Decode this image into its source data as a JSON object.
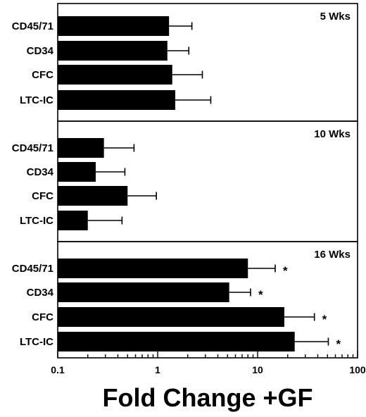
{
  "chart_data": {
    "type": "bar",
    "orientation": "horizontal",
    "x_scale": "log",
    "xlim": [
      0.1,
      100
    ],
    "x_ticks": [
      "0.1",
      "1",
      "10",
      "100"
    ],
    "xlabel": "Fold Change +GF",
    "categories": [
      "CD45/71",
      "CD34",
      "CFC",
      "LTC-IC"
    ],
    "panels": [
      {
        "title": "5 Wks",
        "values": [
          1.3,
          1.25,
          1.4,
          1.5
        ],
        "error_upper": [
          2.2,
          2.05,
          2.8,
          3.4
        ],
        "significant": [
          "",
          "",
          "",
          ""
        ]
      },
      {
        "title": "10 Wks",
        "values": [
          0.29,
          0.24,
          0.5,
          0.2
        ],
        "error_upper": [
          0.58,
          0.47,
          0.97,
          0.44
        ],
        "significant": [
          "",
          "",
          "",
          ""
        ]
      },
      {
        "title": "16 Wks",
        "values": [
          8.0,
          5.2,
          18.5,
          23.5
        ],
        "error_upper": [
          15.0,
          8.5,
          37.0,
          51.0
        ],
        "significant": [
          "*",
          "*",
          "*",
          "*"
        ]
      }
    ],
    "grid": false,
    "legend": "none"
  }
}
